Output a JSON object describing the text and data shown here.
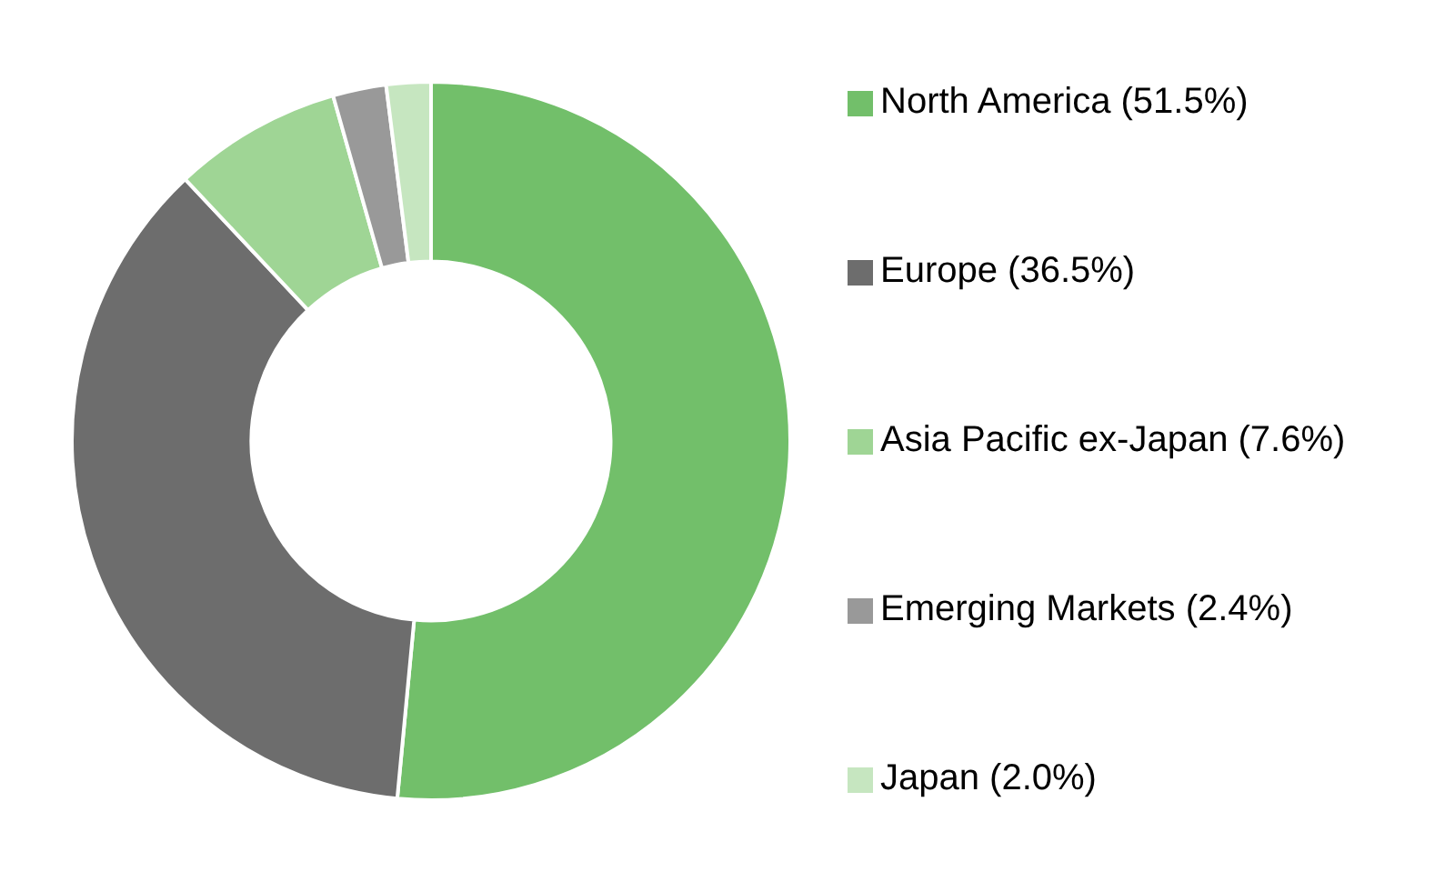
{
  "chart_data": {
    "type": "donut",
    "categories": [
      "North America (51.5%)",
      "Europe (36.5%)",
      "Asia Pacific ex-Japan (7.6%)",
      "Emerging Markets (2.4%)",
      "Japan (2.0%)"
    ],
    "values": [
      51.5,
      36.5,
      7.6,
      2.4,
      2.0
    ],
    "colors": [
      "#72bf6a",
      "#6d6d6d",
      "#9fd595",
      "#999999",
      "#c6e6c0"
    ],
    "legend": "right"
  }
}
